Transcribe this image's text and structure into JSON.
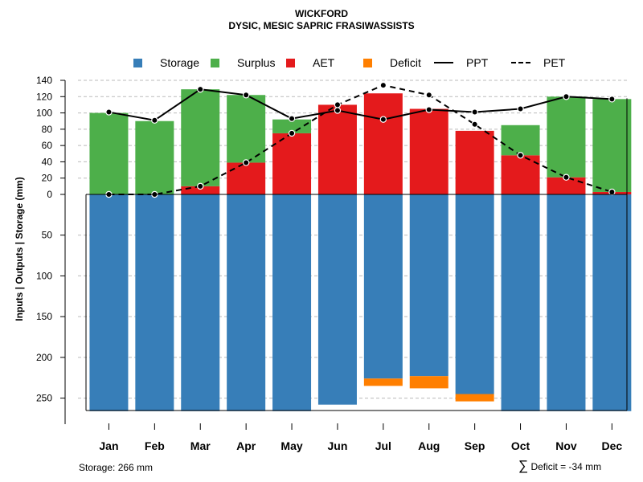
{
  "chart_data": {
    "type": "bar",
    "title": "WICKFORD",
    "subtitle": "DYSIC, MESIC SAPRIC FRASIWASSISTS",
    "ylabel": "Inputs | Outputs | Storage     (mm)",
    "categories": [
      "Jan",
      "Feb",
      "Mar",
      "Apr",
      "May",
      "Jun",
      "Jul",
      "Aug",
      "Sep",
      "Oct",
      "Nov",
      "Dec"
    ],
    "upper_ticks": [
      "0",
      "20",
      "40",
      "60",
      "80",
      "100",
      "120",
      "140"
    ],
    "lower_ticks": [
      "50",
      "100",
      "150",
      "200",
      "250"
    ],
    "ylim_upper": [
      0,
      140
    ],
    "ylim_lower": [
      0,
      266
    ],
    "series": [
      {
        "name": "Storage",
        "color": "#377EB8",
        "values": [
          266,
          266,
          266,
          266,
          266,
          258,
          226,
          223,
          245,
          266,
          266,
          266
        ]
      },
      {
        "name": "Surplus",
        "color": "#4DAF4A",
        "values": [
          100,
          90,
          119,
          83,
          17,
          0,
          0,
          0,
          0,
          37,
          99,
          114
        ]
      },
      {
        "name": "AET",
        "color": "#E41A1C",
        "values": [
          0,
          0,
          10,
          39,
          75,
          110,
          124,
          105,
          78,
          48,
          21,
          3
        ]
      },
      {
        "name": "Deficit",
        "color": "#FF7F00",
        "values": [
          0,
          0,
          0,
          0,
          0,
          0,
          9,
          15,
          9,
          0,
          0,
          0
        ]
      },
      {
        "name": "PPT",
        "style": "solid",
        "values": [
          101,
          91,
          129,
          122,
          93,
          103,
          92,
          104,
          101,
          105,
          120,
          117
        ]
      },
      {
        "name": "PET",
        "style": "dashed",
        "values": [
          0,
          0,
          10,
          39,
          75,
          110,
          134,
          122,
          86,
          48,
          21,
          3
        ]
      }
    ]
  },
  "footer": {
    "storage": "Storage: 266 mm",
    "sigma": "∑",
    "deficit": "Deficit = -34 mm"
  }
}
